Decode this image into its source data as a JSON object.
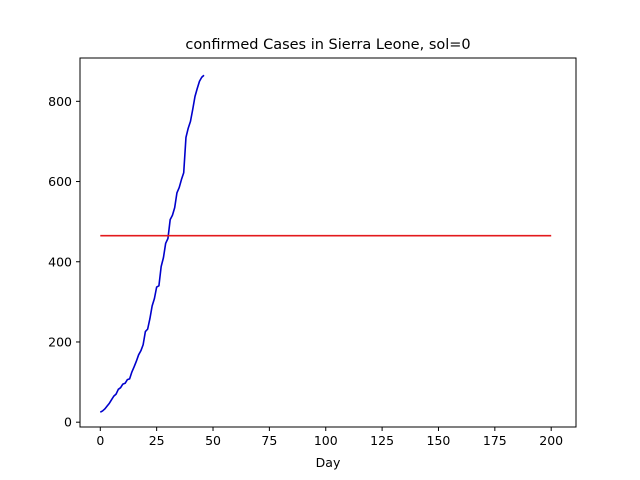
{
  "chart_data": {
    "type": "line",
    "title": "confirmed Cases in Sierra Leone, sol=0",
    "xlabel": "Day",
    "ylabel": "",
    "xlim": [
      -9,
      211
    ],
    "ylim": [
      -12,
      908
    ],
    "xticks": [
      0,
      25,
      50,
      75,
      100,
      125,
      150,
      175,
      200
    ],
    "yticks": [
      0,
      200,
      400,
      600,
      800
    ],
    "grid": false,
    "series": [
      {
        "color": "#0000cc",
        "x": [
          0,
          1,
          2,
          3,
          4,
          5,
          6,
          7,
          8,
          9,
          10,
          11,
          12,
          13,
          14,
          15,
          16,
          17,
          18,
          19,
          20,
          21,
          22,
          23,
          24,
          25,
          26,
          27,
          28,
          29,
          30,
          31,
          32,
          33,
          34,
          35,
          36,
          37,
          38,
          39,
          40,
          41,
          42,
          43,
          44,
          45,
          46
        ],
        "y": [
          25,
          28,
          33,
          40,
          47,
          56,
          65,
          70,
          82,
          86,
          95,
          97,
          106,
          108,
          125,
          138,
          152,
          168,
          178,
          193,
          226,
          232,
          258,
          290,
          308,
          337,
          340,
          388,
          410,
          446,
          458,
          505,
          516,
          535,
          572,
          585,
          605,
          622,
          710,
          733,
          750,
          780,
          812,
          832,
          850,
          860,
          865
        ]
      },
      {
        "color": "#e31a1c",
        "x": [
          0,
          200
        ],
        "y": [
          465,
          465
        ]
      }
    ]
  }
}
